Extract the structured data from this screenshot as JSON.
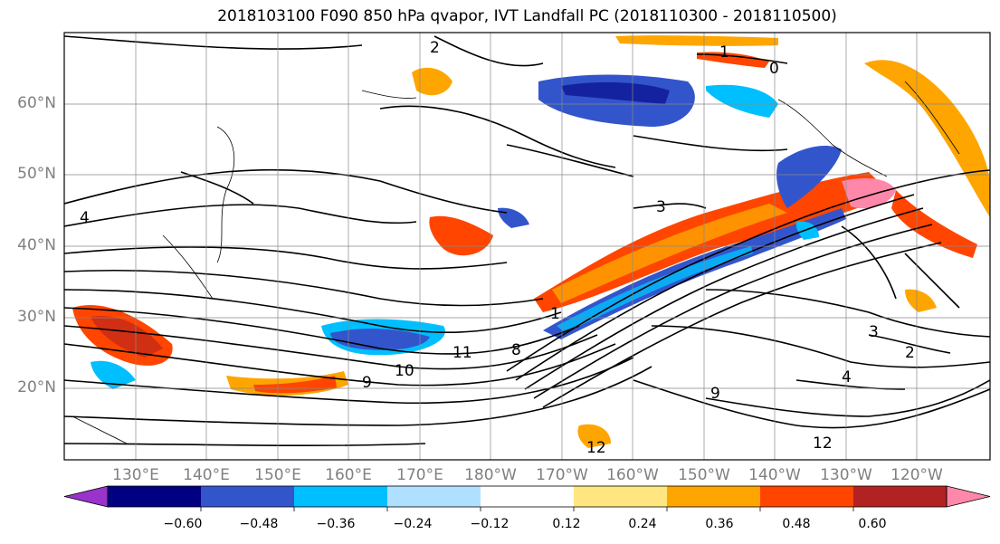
{
  "title": "2018103100 F090 850 hPa qvapor, IVT Landfall PC (2018110300 - 2018110500)",
  "map": {
    "lat_labels": [
      "60°N",
      "50°N",
      "40°N",
      "30°N",
      "20°N"
    ],
    "lon_labels": [
      "130°E",
      "140°E",
      "150°E",
      "160°E",
      "170°E",
      "180°W",
      "170°W",
      "160°W",
      "150°W",
      "140°W",
      "130°W",
      "120°W"
    ],
    "contour_labels": [
      "1",
      "0",
      "2",
      "3",
      "4",
      "8",
      "9",
      "10",
      "11",
      "12",
      "1",
      "2",
      "3",
      "4",
      "9",
      "12"
    ]
  },
  "colorbar": {
    "ticks": [
      "−0.60",
      "−0.48",
      "−0.36",
      "−0.24",
      "−0.12",
      "0.12",
      "0.24",
      "0.36",
      "0.48",
      "0.60"
    ],
    "colors": [
      "#9933cc",
      "#000080",
      "#3355cc",
      "#00bfff",
      "#b0e0ff",
      "#ffffff",
      "#ffe680",
      "#ffa500",
      "#ff4500",
      "#b22222",
      "#ff88aa"
    ]
  }
}
